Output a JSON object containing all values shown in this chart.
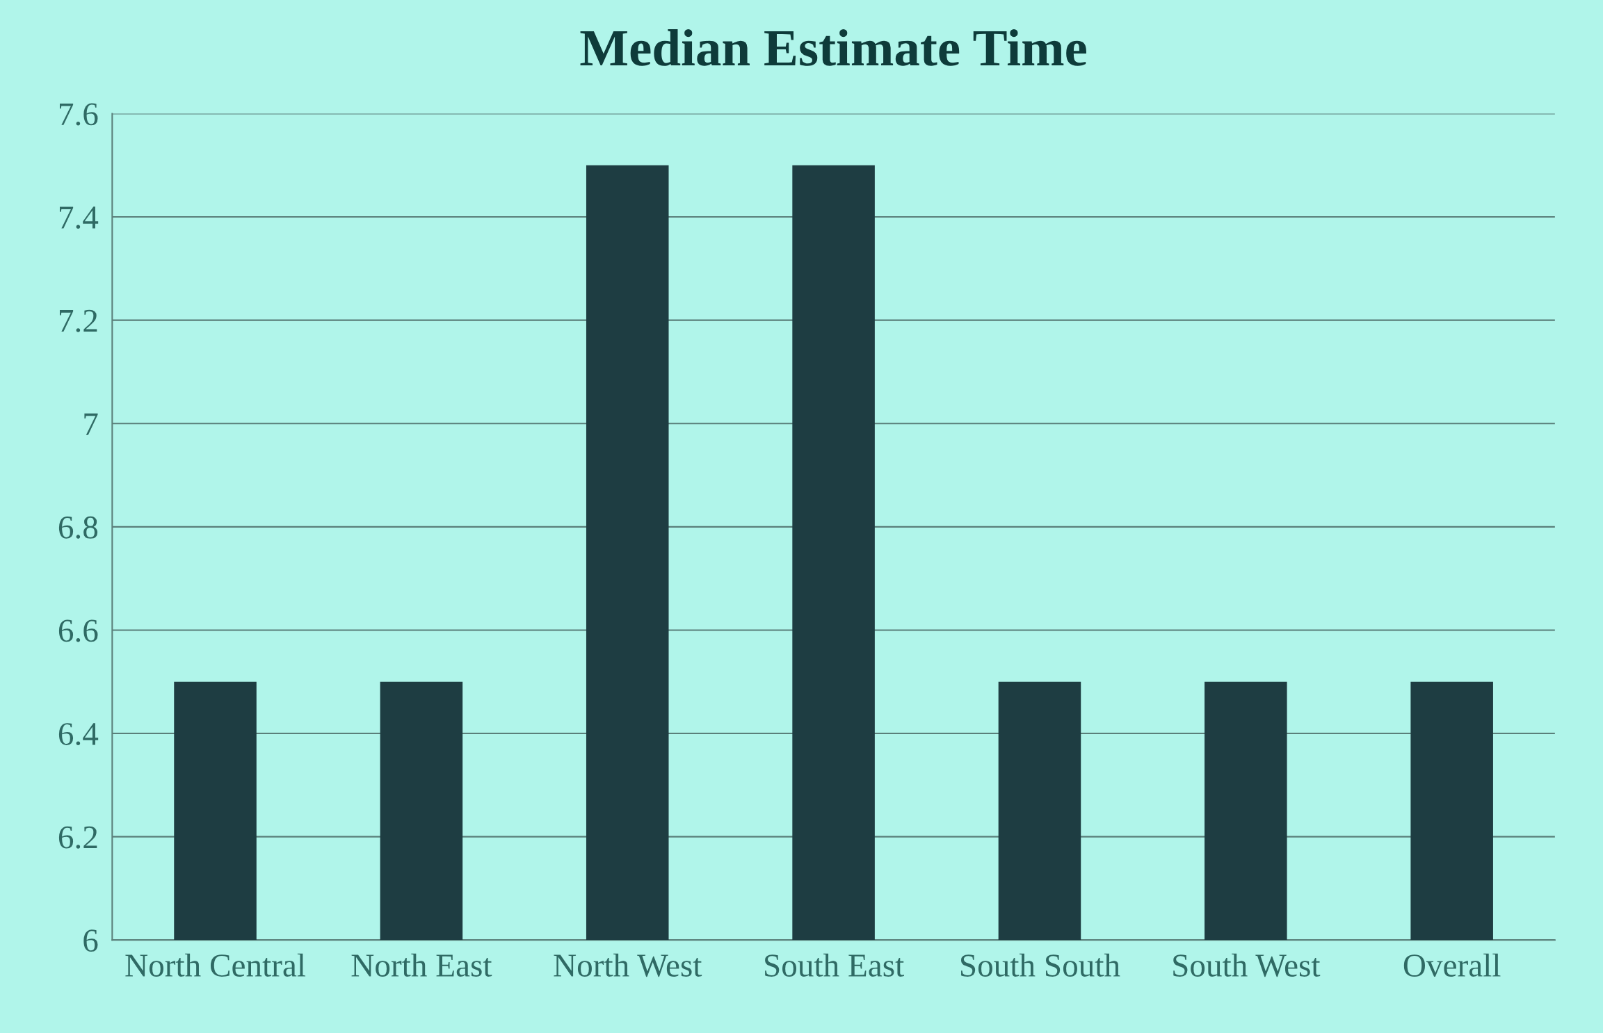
{
  "chart_data": {
    "type": "bar",
    "title": "Median Estimate Time",
    "categories": [
      "North Central",
      "North East",
      "North West",
      "South East",
      "South South",
      "South West",
      "Overall"
    ],
    "values": [
      6.5,
      6.5,
      7.5,
      7.5,
      6.5,
      6.5,
      6.5
    ],
    "color": "#1e3d42",
    "ylim": [
      6,
      7.6
    ],
    "yticks": [
      6,
      6.2,
      6.4,
      6.6,
      6.8,
      7,
      7.2,
      7.4,
      7.6
    ],
    "grid": "y"
  }
}
